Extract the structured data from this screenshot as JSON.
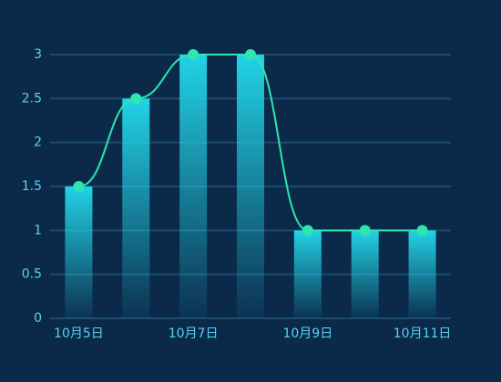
{
  "chart_data": {
    "type": "bar",
    "categories": [
      "10月5日",
      null,
      "10月7日",
      null,
      "10月9日",
      null,
      "10月11日"
    ],
    "values": [
      1.5,
      2.5,
      3,
      3,
      1,
      1,
      1
    ],
    "color": "#22d3e6",
    "line": true,
    "smooth": true,
    "line_color": "#2de6b0",
    "ylim": [
      0,
      3
    ],
    "yticks": [
      0,
      0.5,
      1,
      1.5,
      2,
      2.5,
      3
    ],
    "grid": true
  }
}
